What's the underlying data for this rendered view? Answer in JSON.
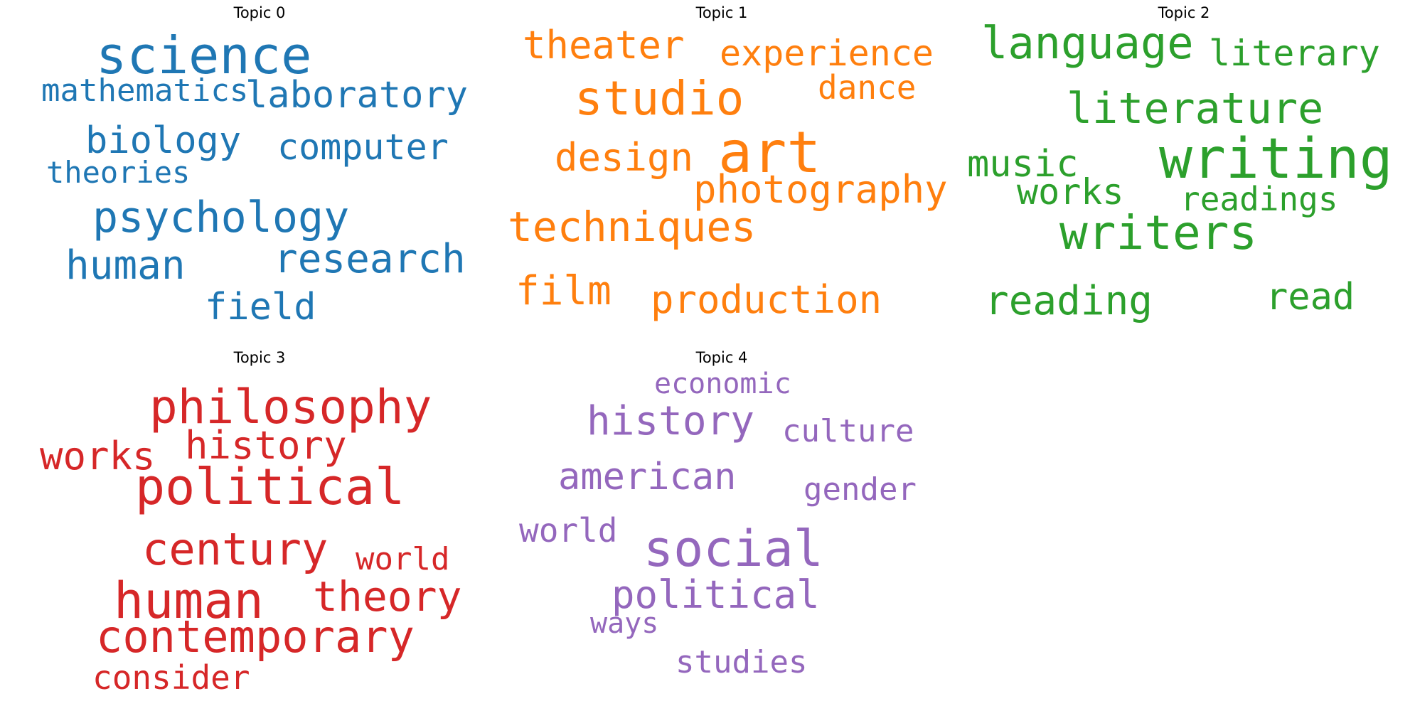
{
  "chart_data": [
    {
      "type": "wordcloud",
      "title": "Topic 0",
      "color": "#1f77b4",
      "words": [
        {
          "text": "science"
        },
        {
          "text": "mathematics"
        },
        {
          "text": "laboratory"
        },
        {
          "text": "biology"
        },
        {
          "text": "computer"
        },
        {
          "text": "theories"
        },
        {
          "text": "psychology"
        },
        {
          "text": "human"
        },
        {
          "text": "research"
        },
        {
          "text": "field"
        }
      ]
    },
    {
      "type": "wordcloud",
      "title": "Topic 1",
      "color": "#ff7f0e",
      "words": [
        {
          "text": "theater"
        },
        {
          "text": "experience"
        },
        {
          "text": "studio"
        },
        {
          "text": "dance"
        },
        {
          "text": "design"
        },
        {
          "text": "art"
        },
        {
          "text": "photography"
        },
        {
          "text": "techniques"
        },
        {
          "text": "film"
        },
        {
          "text": "production"
        }
      ]
    },
    {
      "type": "wordcloud",
      "title": "Topic 2",
      "color": "#2ca02c",
      "words": [
        {
          "text": "language"
        },
        {
          "text": "literary"
        },
        {
          "text": "literature"
        },
        {
          "text": "music"
        },
        {
          "text": "writing"
        },
        {
          "text": "works"
        },
        {
          "text": "readings"
        },
        {
          "text": "writers"
        },
        {
          "text": "reading"
        },
        {
          "text": "read"
        }
      ]
    },
    {
      "type": "wordcloud",
      "title": "Topic 3",
      "color": "#d62728",
      "words": [
        {
          "text": "philosophy"
        },
        {
          "text": "history"
        },
        {
          "text": "works"
        },
        {
          "text": "political"
        },
        {
          "text": "century"
        },
        {
          "text": "world"
        },
        {
          "text": "theory"
        },
        {
          "text": "human"
        },
        {
          "text": "contemporary"
        },
        {
          "text": "consider"
        }
      ]
    },
    {
      "type": "wordcloud",
      "title": "Topic 4",
      "color": "#9467bd",
      "words": [
        {
          "text": "economic"
        },
        {
          "text": "history"
        },
        {
          "text": "culture"
        },
        {
          "text": "american"
        },
        {
          "text": "gender"
        },
        {
          "text": "world"
        },
        {
          "text": "social"
        },
        {
          "text": "political"
        },
        {
          "text": "ways"
        },
        {
          "text": "studies"
        }
      ]
    }
  ]
}
